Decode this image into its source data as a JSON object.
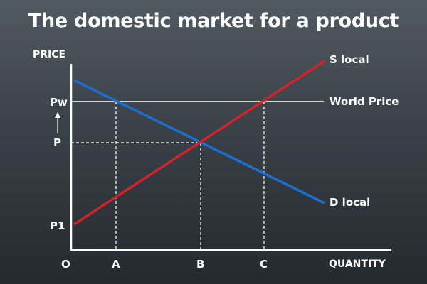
{
  "title": "The domestic market for a product",
  "axes": {
    "y_label": "PRICE",
    "x_label": "QUANTITY",
    "origin": "O"
  },
  "price_labels": {
    "pw": "Pw",
    "p": "P",
    "p1": "P1"
  },
  "quantity_labels": {
    "a": "A",
    "b": "B",
    "c": "C"
  },
  "curves": {
    "supply": {
      "label": "S local",
      "color": "#d1232a"
    },
    "demand": {
      "label": "D local",
      "color": "#1a6fcf"
    },
    "world_price": {
      "label": "World Price",
      "color": "#ffffff"
    }
  }
}
